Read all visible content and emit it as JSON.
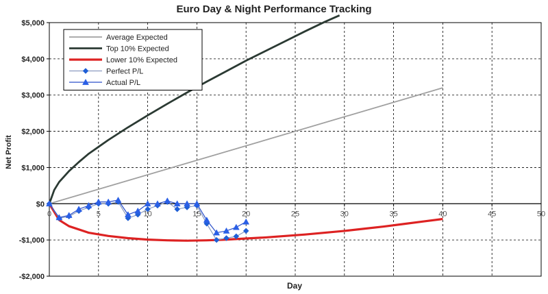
{
  "chart_data": {
    "type": "line",
    "title": "Euro Day & Night Performance Tracking",
    "xlabel": "Day",
    "ylabel": "Net Profit",
    "xlim": [
      0,
      50
    ],
    "ylim": [
      -2000,
      5000
    ],
    "x_ticks": [
      0,
      5,
      10,
      15,
      20,
      25,
      30,
      35,
      40,
      45,
      50
    ],
    "x_tick_labels": [
      "0",
      "5",
      "10",
      "15",
      "20",
      "25",
      "30",
      "35",
      "40",
      "45",
      "50"
    ],
    "y_ticks": [
      -2000,
      -1000,
      0,
      1000,
      2000,
      3000,
      4000,
      5000
    ],
    "y_tick_labels": [
      "-$2,000",
      "-$1,000",
      "$0",
      "$1,000",
      "$2,000",
      "$3,000",
      "$4,000",
      "$5,000"
    ],
    "grid": true,
    "legend_position": "top-left",
    "series": [
      {
        "name": "Average Expected",
        "color": "#a0a0a0",
        "marker": "none",
        "x": [
          0,
          40
        ],
        "y": [
          0,
          3200
        ]
      },
      {
        "name": "Top 10% Expected",
        "color": "#2b3a33",
        "marker": "none",
        "x": [
          0,
          0.5,
          1,
          2,
          3,
          4,
          5,
          6,
          8,
          10,
          12,
          14,
          16,
          18,
          20,
          22,
          24,
          26,
          28,
          29.5
        ],
        "y": [
          0,
          380,
          600,
          900,
          1150,
          1380,
          1570,
          1760,
          2110,
          2440,
          2760,
          3070,
          3370,
          3660,
          3950,
          4220,
          4490,
          4760,
          5020,
          5200
        ]
      },
      {
        "name": "Lower 10% Expected",
        "color": "#dd2222",
        "marker": "none",
        "x": [
          0,
          1,
          2,
          4,
          6,
          8,
          10,
          12,
          14,
          16,
          18,
          20,
          22,
          24,
          26,
          28,
          30,
          32,
          34,
          36,
          38,
          40
        ],
        "y": [
          0,
          -450,
          -620,
          -800,
          -890,
          -950,
          -990,
          -1010,
          -1020,
          -1010,
          -990,
          -960,
          -930,
          -890,
          -850,
          -800,
          -750,
          -690,
          -630,
          -560,
          -490,
          -420
        ]
      },
      {
        "name": "Perfect P/L",
        "color": "#8a9bbf",
        "marker": "diamond",
        "marker_color": "#1f5fd6",
        "x": [
          0,
          1,
          2,
          3,
          4,
          5,
          6,
          7,
          8,
          9,
          10,
          11,
          12,
          13,
          14,
          15,
          16,
          17,
          18,
          19,
          20
        ],
        "y": [
          0,
          -400,
          -350,
          -200,
          -100,
          0,
          0,
          50,
          -400,
          -300,
          -150,
          -50,
          50,
          -150,
          -100,
          -50,
          -550,
          -1000,
          -950,
          -900,
          -750
        ]
      },
      {
        "name": "Actual P/L",
        "color": "#2a4fc9",
        "marker": "triangle",
        "marker_color": "#2a5fe6",
        "x": [
          0,
          1,
          2,
          3,
          4,
          5,
          6,
          7,
          8,
          9,
          10,
          11,
          12,
          13,
          14,
          15,
          16,
          17,
          18,
          19,
          20
        ],
        "y": [
          0,
          -380,
          -320,
          -150,
          -50,
          50,
          50,
          100,
          -300,
          -200,
          0,
          0,
          80,
          0,
          0,
          0,
          -450,
          -800,
          -750,
          -650,
          -500
        ]
      }
    ]
  }
}
